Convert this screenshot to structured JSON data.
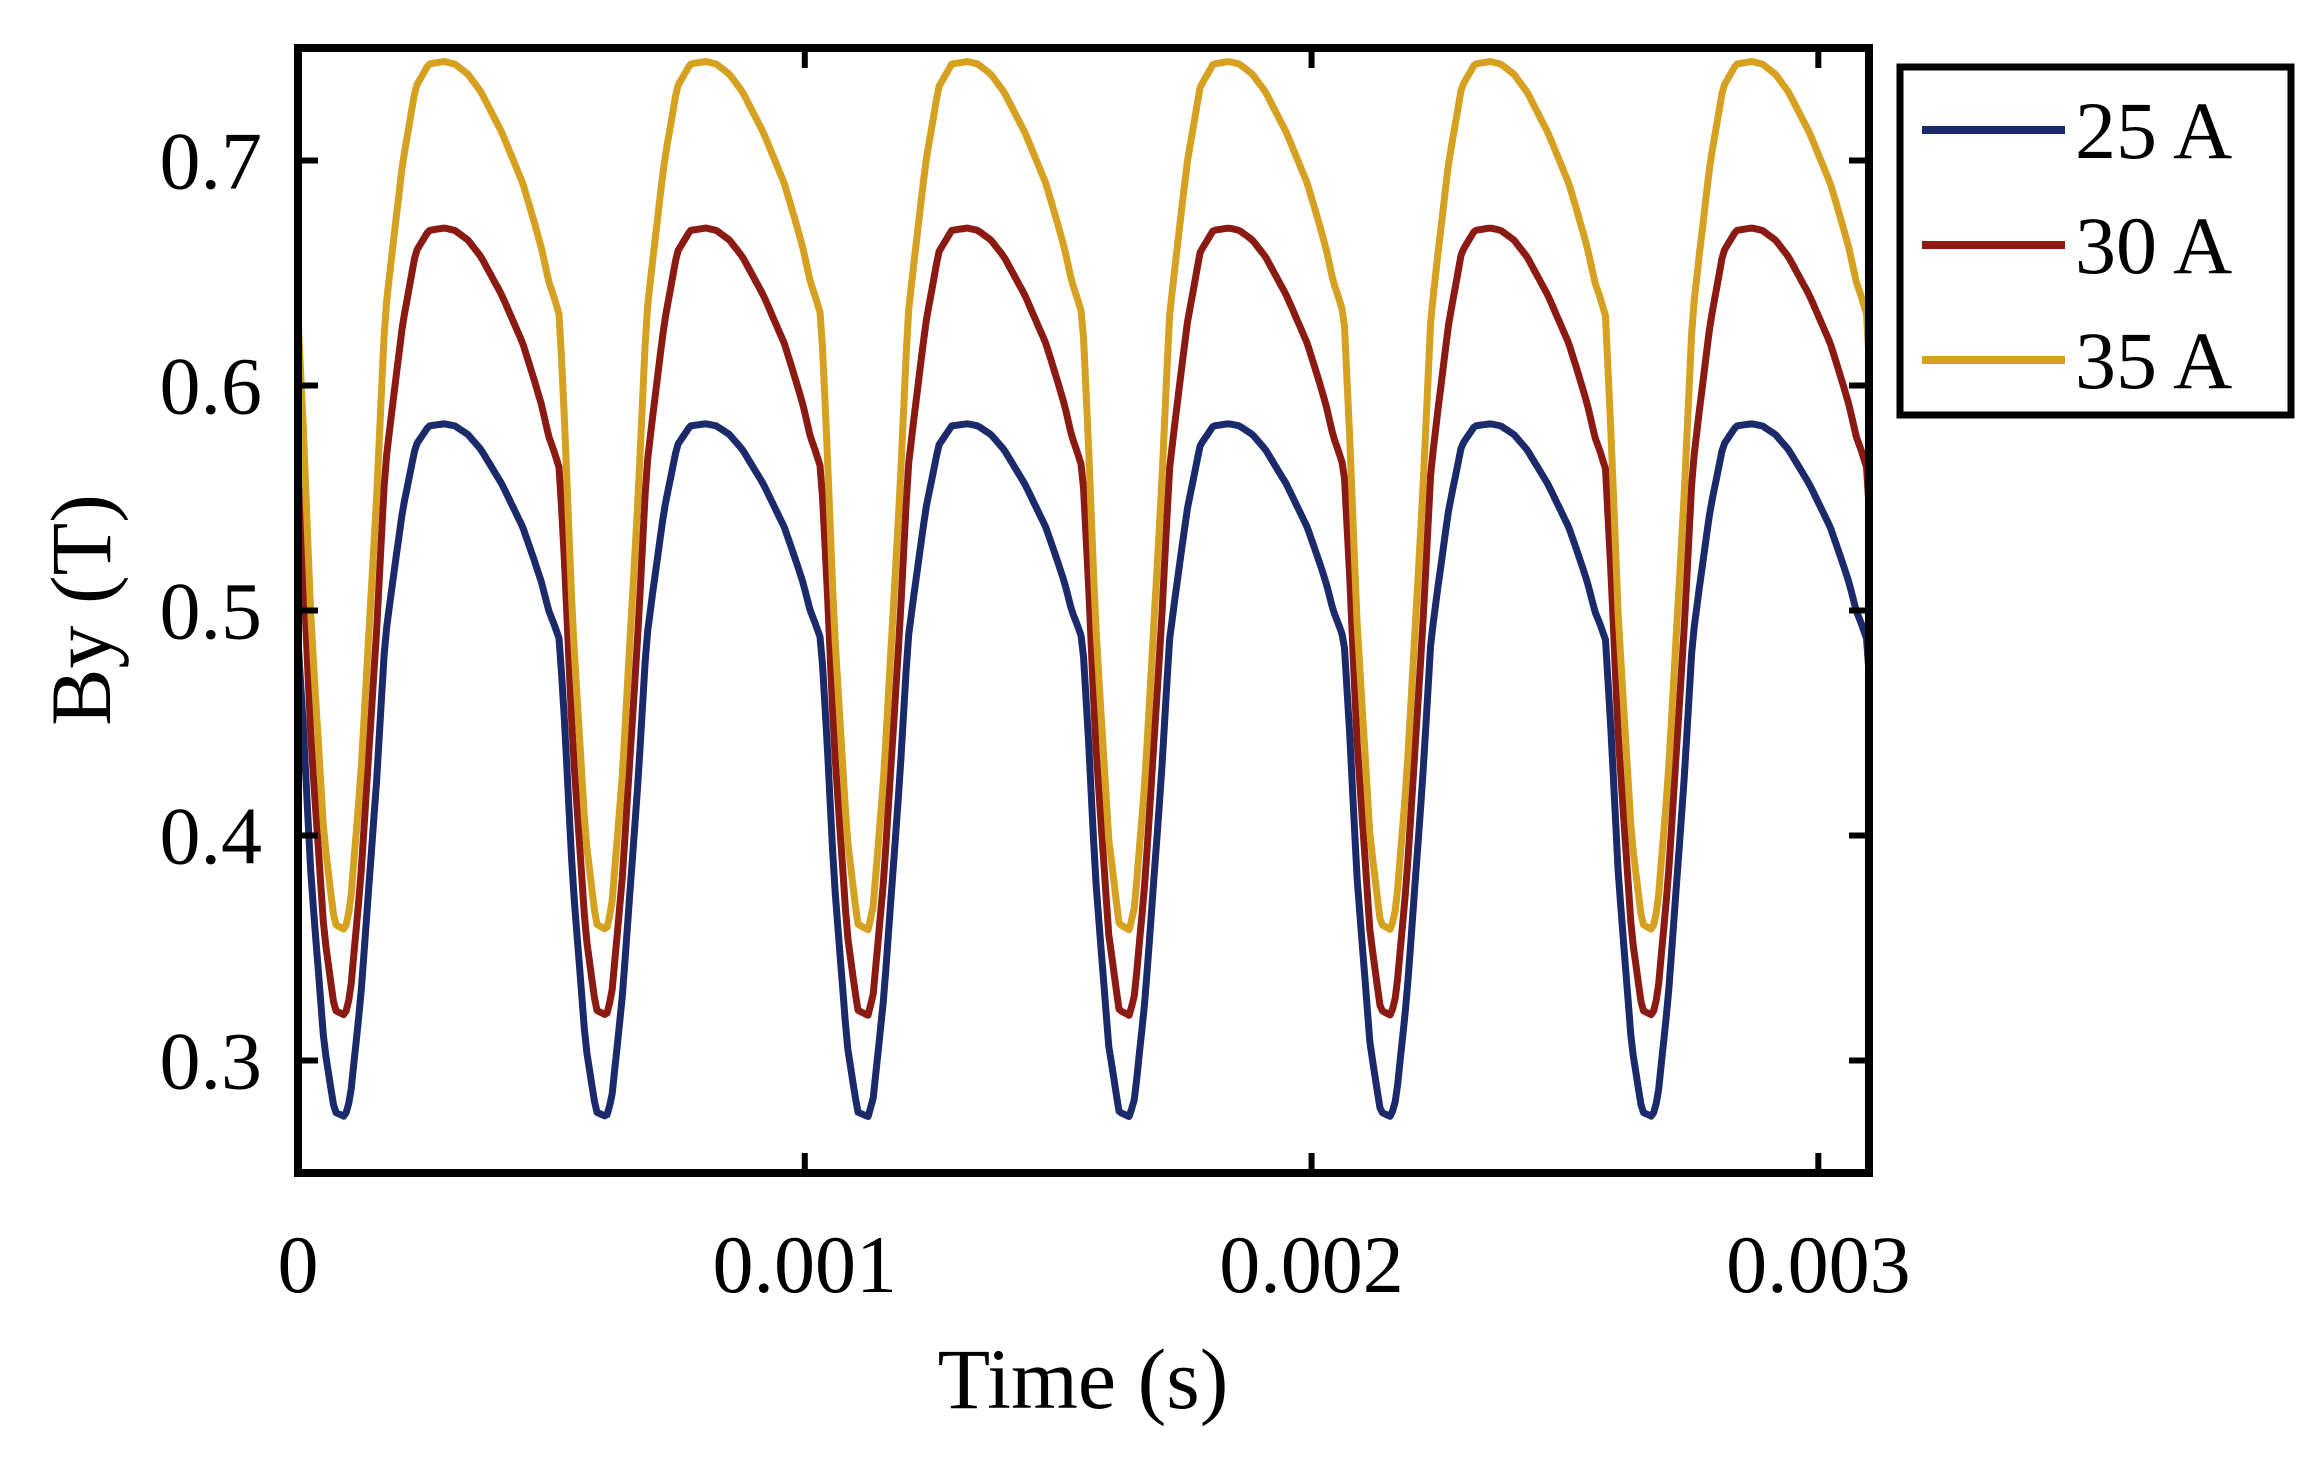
{
  "chart_data": {
    "type": "line",
    "title": "",
    "xlabel": "Time (s)",
    "ylabel": "By (T)",
    "xlim": [
      0,
      0.0031
    ],
    "ylim": [
      0.25,
      0.75
    ],
    "xticks": [
      0,
      0.001,
      0.002,
      0.003
    ],
    "xtick_labels": [
      "0",
      "0.001",
      "0.002",
      "0.003"
    ],
    "yticks": [
      0.3,
      0.4,
      0.5,
      0.6,
      0.7
    ],
    "ytick_labels": [
      "0.3",
      "0.4",
      "0.5",
      "0.6",
      "0.7"
    ],
    "grid": false,
    "legend_position": "outside-top-right",
    "period_s": 0.000516,
    "cycle_template": {
      "phase_fraction": [
        0,
        0.02,
        0.05,
        0.1,
        0.14,
        0.18,
        0.2,
        0.24,
        0.3,
        0.36,
        0.4,
        0.45,
        0.5,
        0.56,
        0.6,
        0.65,
        0.7,
        0.74,
        0.78,
        0.82,
        0.86,
        0.9,
        0.93,
        0.96,
        0.98,
        1.0
      ],
      "shape": [
        0.0,
        -0.18,
        -0.5,
        -0.85,
        -0.99,
        -1.0,
        -0.96,
        -0.75,
        -0.3,
        0.25,
        0.6,
        0.9,
        0.99,
        1.0,
        0.99,
        0.95,
        0.88,
        0.8,
        0.72,
        0.62,
        0.52,
        0.38,
        0.27,
        0.13,
        0.07,
        0.0
      ]
    },
    "series": [
      {
        "name": "25 A",
        "color": "#1b2a6b",
        "mid": 0.487,
        "amp_low": 0.212,
        "amp_high": 0.096
      },
      {
        "name": "30 A",
        "color": "#8b1a12",
        "mid": 0.563,
        "amp_low": 0.243,
        "amp_high": 0.107
      },
      {
        "name": "35 A",
        "color": "#d6a021",
        "mid": 0.631,
        "amp_low": 0.273,
        "amp_high": 0.113
      }
    ]
  }
}
